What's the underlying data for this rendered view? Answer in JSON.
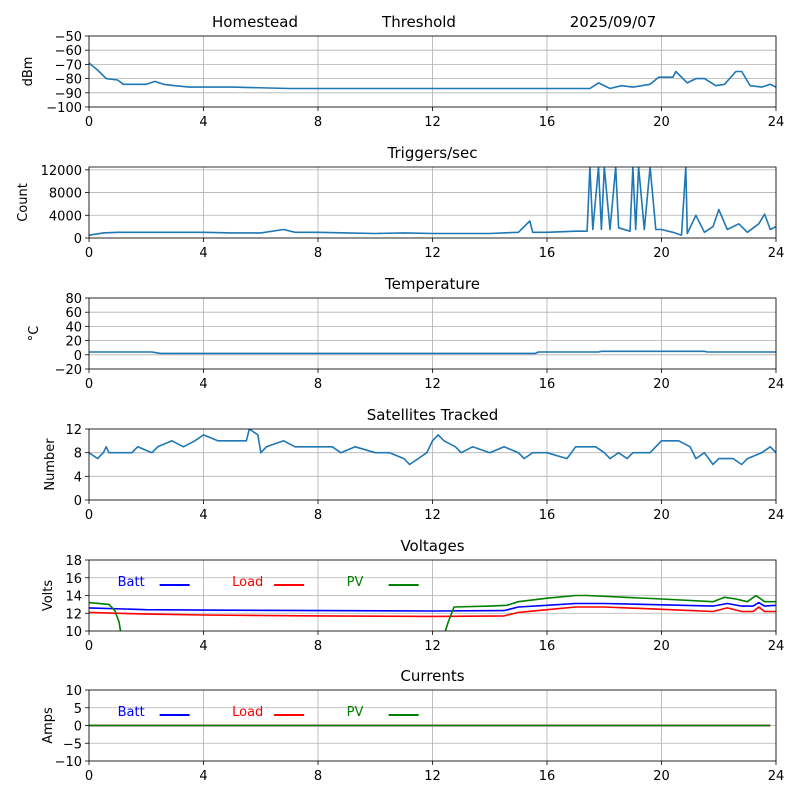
{
  "header": {
    "site": "Homestead",
    "mode": "Threshold",
    "date": "2025/09/07"
  },
  "chart_data": [
    {
      "type": "line",
      "title": "",
      "xlabel": "",
      "ylabel": "dBm",
      "xlim": [
        0,
        24
      ],
      "ylim": [
        -100,
        -50
      ],
      "xticks": [
        0,
        4,
        8,
        12,
        16,
        20,
        24
      ],
      "yticks": [
        -100,
        -90,
        -80,
        -70,
        -60,
        -50
      ],
      "grid": true,
      "series": [
        {
          "color": "#1f77b4",
          "points": [
            [
              0,
              -69
            ],
            [
              0.3,
              -74
            ],
            [
              0.6,
              -80
            ],
            [
              1.0,
              -81
            ],
            [
              1.2,
              -84
            ],
            [
              2.0,
              -84
            ],
            [
              2.3,
              -82
            ],
            [
              2.6,
              -84
            ],
            [
              3.0,
              -85
            ],
            [
              3.5,
              -86
            ],
            [
              5.0,
              -86
            ],
            [
              7.0,
              -87
            ],
            [
              9.0,
              -87
            ],
            [
              12.0,
              -87
            ],
            [
              14.0,
              -87
            ],
            [
              15.5,
              -87
            ],
            [
              16.0,
              -87
            ],
            [
              17.0,
              -87
            ],
            [
              17.5,
              -87
            ],
            [
              17.8,
              -83
            ],
            [
              18.2,
              -87
            ],
            [
              18.6,
              -85
            ],
            [
              19.0,
              -86
            ],
            [
              19.6,
              -84
            ],
            [
              19.9,
              -79
            ],
            [
              20.4,
              -79
            ],
            [
              20.5,
              -75
            ],
            [
              20.9,
              -83
            ],
            [
              21.2,
              -80
            ],
            [
              21.5,
              -80
            ],
            [
              21.9,
              -85
            ],
            [
              22.2,
              -84
            ],
            [
              22.6,
              -75
            ],
            [
              22.8,
              -75
            ],
            [
              23.1,
              -85
            ],
            [
              23.5,
              -86
            ],
            [
              23.8,
              -84
            ],
            [
              24.0,
              -86
            ]
          ]
        }
      ]
    },
    {
      "type": "line",
      "title": "Triggers/sec",
      "xlabel": "",
      "ylabel": "Count",
      "xlim": [
        0,
        24
      ],
      "ylim": [
        0,
        12500
      ],
      "xticks": [
        0,
        4,
        8,
        12,
        16,
        20,
        24
      ],
      "yticks": [
        0,
        4000,
        8000,
        12000
      ],
      "grid": true,
      "series": [
        {
          "color": "#1f77b4",
          "points": [
            [
              0,
              500
            ],
            [
              0.5,
              900
            ],
            [
              1.0,
              1000
            ],
            [
              2.0,
              1000
            ],
            [
              3.0,
              1000
            ],
            [
              4.0,
              1000
            ],
            [
              5.0,
              900
            ],
            [
              6.0,
              900
            ],
            [
              6.8,
              1500
            ],
            [
              7.2,
              1000
            ],
            [
              8.0,
              1000
            ],
            [
              9.0,
              900
            ],
            [
              10.0,
              800
            ],
            [
              11.0,
              900
            ],
            [
              12.0,
              800
            ],
            [
              13.0,
              800
            ],
            [
              14.0,
              800
            ],
            [
              15.0,
              1000
            ],
            [
              15.4,
              3000
            ],
            [
              15.5,
              1000
            ],
            [
              16.0,
              1000
            ],
            [
              17.0,
              1200
            ],
            [
              17.4,
              1200
            ],
            [
              17.5,
              12500
            ],
            [
              17.6,
              1500
            ],
            [
              17.8,
              12500
            ],
            [
              17.9,
              1500
            ],
            [
              18.0,
              12500
            ],
            [
              18.2,
              1500
            ],
            [
              18.4,
              12500
            ],
            [
              18.5,
              1800
            ],
            [
              18.9,
              1200
            ],
            [
              19.0,
              12500
            ],
            [
              19.1,
              1500
            ],
            [
              19.2,
              12500
            ],
            [
              19.4,
              1500
            ],
            [
              19.6,
              12500
            ],
            [
              19.8,
              1500
            ],
            [
              20.0,
              1500
            ],
            [
              20.4,
              1000
            ],
            [
              20.7,
              500
            ],
            [
              20.85,
              12500
            ],
            [
              20.9,
              800
            ],
            [
              21.2,
              4000
            ],
            [
              21.5,
              1000
            ],
            [
              21.8,
              2000
            ],
            [
              22.0,
              5000
            ],
            [
              22.3,
              1500
            ],
            [
              22.7,
              2500
            ],
            [
              23.0,
              1000
            ],
            [
              23.4,
              2500
            ],
            [
              23.6,
              4200
            ],
            [
              23.8,
              1500
            ],
            [
              24.0,
              2000
            ]
          ]
        }
      ]
    },
    {
      "type": "line",
      "title": "Temperature",
      "xlabel": "",
      "ylabel": "°C",
      "xlim": [
        0,
        24
      ],
      "ylim": [
        -20,
        80
      ],
      "xticks": [
        0,
        4,
        8,
        12,
        16,
        20,
        24
      ],
      "yticks": [
        -20,
        0,
        20,
        40,
        60,
        80
      ],
      "grid": true,
      "series": [
        {
          "color": "#1f77b4",
          "points": [
            [
              0,
              4
            ],
            [
              2.2,
              4
            ],
            [
              2.5,
              2
            ],
            [
              15.6,
              2
            ],
            [
              15.7,
              4
            ],
            [
              17.8,
              4
            ],
            [
              17.9,
              5
            ],
            [
              21.5,
              5
            ],
            [
              21.6,
              4
            ],
            [
              24,
              4
            ]
          ]
        }
      ]
    },
    {
      "type": "line",
      "title": "Satellites Tracked",
      "xlabel": "",
      "ylabel": "Number",
      "xlim": [
        0,
        24
      ],
      "ylim": [
        0,
        12
      ],
      "xticks": [
        0,
        4,
        8,
        12,
        16,
        20,
        24
      ],
      "yticks": [
        0,
        4,
        8,
        12
      ],
      "grid": true,
      "series": [
        {
          "color": "#1f77b4",
          "points": [
            [
              0,
              8
            ],
            [
              0.3,
              7
            ],
            [
              0.5,
              8
            ],
            [
              0.6,
              9
            ],
            [
              0.7,
              8
            ],
            [
              1.5,
              8
            ],
            [
              1.7,
              9
            ],
            [
              2.2,
              8
            ],
            [
              2.4,
              9
            ],
            [
              2.9,
              10
            ],
            [
              3.3,
              9
            ],
            [
              3.7,
              10
            ],
            [
              4.0,
              11
            ],
            [
              4.5,
              10
            ],
            [
              5.5,
              10
            ],
            [
              5.6,
              12
            ],
            [
              5.9,
              11
            ],
            [
              6.0,
              8
            ],
            [
              6.2,
              9
            ],
            [
              6.8,
              10
            ],
            [
              7.2,
              9
            ],
            [
              8.5,
              9
            ],
            [
              8.8,
              8
            ],
            [
              9.3,
              9
            ],
            [
              10.0,
              8
            ],
            [
              10.5,
              8
            ],
            [
              11.0,
              7
            ],
            [
              11.2,
              6
            ],
            [
              11.5,
              7
            ],
            [
              11.8,
              8
            ],
            [
              12.0,
              10
            ],
            [
              12.2,
              11
            ],
            [
              12.4,
              10
            ],
            [
              12.8,
              9
            ],
            [
              13.0,
              8
            ],
            [
              13.4,
              9
            ],
            [
              14.0,
              8
            ],
            [
              14.5,
              9
            ],
            [
              15.0,
              8
            ],
            [
              15.2,
              7
            ],
            [
              15.5,
              8
            ],
            [
              16.0,
              8
            ],
            [
              16.7,
              7
            ],
            [
              17.0,
              9
            ],
            [
              17.7,
              9
            ],
            [
              18.0,
              8
            ],
            [
              18.2,
              7
            ],
            [
              18.5,
              8
            ],
            [
              18.8,
              7
            ],
            [
              19.0,
              8
            ],
            [
              19.6,
              8
            ],
            [
              20.0,
              10
            ],
            [
              20.6,
              10
            ],
            [
              21.0,
              9
            ],
            [
              21.2,
              7
            ],
            [
              21.5,
              8
            ],
            [
              21.8,
              6
            ],
            [
              22.0,
              7
            ],
            [
              22.5,
              7
            ],
            [
              22.8,
              6
            ],
            [
              23.0,
              7
            ],
            [
              23.5,
              8
            ],
            [
              23.8,
              9
            ],
            [
              24.0,
              8
            ]
          ]
        }
      ]
    },
    {
      "type": "line",
      "title": "Voltages",
      "xlabel": "",
      "ylabel": "Volts",
      "xlim": [
        0,
        24
      ],
      "ylim": [
        10,
        18
      ],
      "xticks": [
        0,
        4,
        8,
        12,
        16,
        20,
        24
      ],
      "yticks": [
        10,
        12,
        14,
        16,
        18
      ],
      "grid": true,
      "legend": "top-left, horizontal, text before line",
      "series": [
        {
          "name": "Batt",
          "color": "#0000ff",
          "points": [
            [
              0,
              12.6
            ],
            [
              2,
              12.4
            ],
            [
              4,
              12.35
            ],
            [
              8,
              12.3
            ],
            [
              12,
              12.25
            ],
            [
              14.5,
              12.3
            ],
            [
              15,
              12.7
            ],
            [
              16,
              12.9
            ],
            [
              17,
              13.1
            ],
            [
              18,
              13.1
            ],
            [
              20,
              12.95
            ],
            [
              21.8,
              12.8
            ],
            [
              22.3,
              13.1
            ],
            [
              22.8,
              12.8
            ],
            [
              23.2,
              12.8
            ],
            [
              23.4,
              13.2
            ],
            [
              23.6,
              12.8
            ],
            [
              24,
              12.9
            ]
          ]
        },
        {
          "name": "Load",
          "color": "#ff0000",
          "points": [
            [
              0,
              12.1
            ],
            [
              2,
              11.9
            ],
            [
              4,
              11.8
            ],
            [
              8,
              11.7
            ],
            [
              12,
              11.65
            ],
            [
              14.5,
              11.7
            ],
            [
              15,
              12.1
            ],
            [
              16,
              12.4
            ],
            [
              17,
              12.7
            ],
            [
              18,
              12.7
            ],
            [
              20,
              12.45
            ],
            [
              21.8,
              12.2
            ],
            [
              22.3,
              12.6
            ],
            [
              22.8,
              12.2
            ],
            [
              23.2,
              12.2
            ],
            [
              23.4,
              12.7
            ],
            [
              23.6,
              12.2
            ],
            [
              24,
              12.2
            ]
          ]
        },
        {
          "name": "PV",
          "color": "#008000",
          "points": [
            [
              0,
              13.2
            ],
            [
              0.7,
              13.0
            ],
            [
              0.9,
              12.3
            ],
            [
              1.05,
              11.0
            ],
            [
              1.1,
              10.0
            ],
            [
              null,
              null
            ],
            [
              12.45,
              10.0
            ],
            [
              12.55,
              11.0
            ],
            [
              12.75,
              12.7
            ],
            [
              14.0,
              12.8
            ],
            [
              14.6,
              12.9
            ],
            [
              15.0,
              13.3
            ],
            [
              16.0,
              13.7
            ],
            [
              17.0,
              14.0
            ],
            [
              17.4,
              14.0
            ],
            [
              20.0,
              13.6
            ],
            [
              21.8,
              13.3
            ],
            [
              22.2,
              13.8
            ],
            [
              22.6,
              13.6
            ],
            [
              23.0,
              13.3
            ],
            [
              23.3,
              14.0
            ],
            [
              23.6,
              13.3
            ],
            [
              24.0,
              13.3
            ]
          ]
        }
      ]
    },
    {
      "type": "line",
      "title": "Currents",
      "xlabel": "",
      "ylabel": "Amps",
      "xlim": [
        0,
        24
      ],
      "ylim": [
        -10,
        10
      ],
      "xticks": [
        0,
        4,
        8,
        12,
        16,
        20,
        24
      ],
      "yticks": [
        -10,
        -5,
        0,
        5,
        10
      ],
      "grid": true,
      "legend": "top-left, horizontal, text before line",
      "series": [
        {
          "name": "Batt",
          "color": "#0000ff",
          "points": [
            [
              0,
              0
            ],
            [
              23.8,
              0
            ]
          ]
        },
        {
          "name": "Load",
          "color": "#ff0000",
          "points": [
            [
              0,
              0
            ],
            [
              23.8,
              0
            ]
          ]
        },
        {
          "name": "PV",
          "color": "#008000",
          "points": [
            [
              0,
              0
            ],
            [
              23.8,
              0
            ]
          ]
        }
      ]
    }
  ]
}
